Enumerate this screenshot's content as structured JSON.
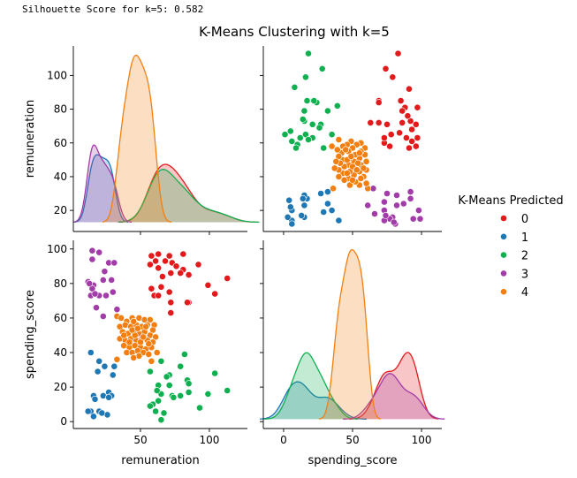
{
  "silhouette_text": "Silhouette Score for k=5: 0.582",
  "chart_data": {
    "type": "scatter",
    "subtype": "pairplot",
    "title": "K-Means Clustering with k=5",
    "variables": [
      "remuneration",
      "spending_score"
    ],
    "diag_kind": "kde",
    "grid": false,
    "legend_placement": "right",
    "legend": {
      "title": "K-Means Predicted",
      "entries": [
        {
          "label": "0",
          "color": "#e31a1c"
        },
        {
          "label": "1",
          "color": "#1f77b4"
        },
        {
          "label": "2",
          "color": "#10b050"
        },
        {
          "label": "3",
          "color": "#a23ca8"
        },
        {
          "label": "4",
          "color": "#f27f10"
        }
      ]
    },
    "axes": {
      "remuneration": {
        "label": "remuneration",
        "xlim": [
          1.3,
          127.6
        ],
        "ylim": [
          7.5,
          117.5
        ],
        "xticks": [
          50,
          100
        ],
        "yticks": [
          20,
          40,
          60,
          80,
          100
        ]
      },
      "spending_score": {
        "label": "spending_score",
        "xlim": [
          -14.7,
          114.7
        ],
        "ylim": [
          -4,
          105
        ],
        "xticks": [
          0,
          50,
          100
        ],
        "yticks": [
          0,
          20,
          40,
          60,
          80,
          100
        ]
      }
    },
    "point_order": [
      "remuneration",
      "spending_score"
    ],
    "clusters": [
      {
        "label": "0",
        "points": [
          [
            58,
            96
          ],
          [
            63,
            97
          ],
          [
            61,
            93
          ],
          [
            57,
            91
          ],
          [
            68,
            93
          ],
          [
            71,
            96
          ],
          [
            73,
            92
          ],
          [
            76,
            90
          ],
          [
            81,
            97
          ],
          [
            81,
            88
          ],
          [
            85,
            85
          ],
          [
            92,
            91
          ],
          [
            63,
            89
          ],
          [
            66,
            84
          ],
          [
            72,
            86
          ],
          [
            113,
            83
          ],
          [
            99,
            79
          ],
          [
            104,
            74
          ],
          [
            58,
            77
          ],
          [
            65,
            78
          ],
          [
            60,
            73
          ],
          [
            63,
            73
          ],
          [
            71,
            75
          ],
          [
            72,
            69
          ],
          [
            85,
            69
          ],
          [
            72,
            63
          ],
          [
            79,
            86
          ],
          [
            84,
            69
          ]
        ]
      },
      {
        "label": "1",
        "points": [
          [
            14,
            40
          ],
          [
            20,
            35
          ],
          [
            24,
            32
          ],
          [
            19,
            29
          ],
          [
            31,
            32
          ],
          [
            30,
            27
          ],
          [
            27,
            17
          ],
          [
            16,
            15
          ],
          [
            23,
            15
          ],
          [
            29,
            15
          ],
          [
            14,
            6
          ],
          [
            20,
            6
          ],
          [
            26,
            4
          ],
          [
            16,
            3
          ],
          [
            12,
            6
          ],
          [
            17,
            13
          ],
          [
            27,
            14
          ],
          [
            22,
            5
          ]
        ]
      },
      {
        "label": "2",
        "points": [
          [
            82,
            39
          ],
          [
            65,
            35
          ],
          [
            79,
            32
          ],
          [
            57,
            29
          ],
          [
            71,
            27
          ],
          [
            69,
            26
          ],
          [
            84,
            24
          ],
          [
            85,
            22
          ],
          [
            63,
            21
          ],
          [
            71,
            21
          ],
          [
            104,
            28
          ],
          [
            113,
            18
          ],
          [
            99,
            16
          ],
          [
            85,
            17
          ],
          [
            79,
            15
          ],
          [
            73,
            15
          ],
          [
            65,
            16
          ],
          [
            63,
            12
          ],
          [
            59,
            10
          ],
          [
            57,
            9
          ],
          [
            61,
            6
          ],
          [
            67,
            5
          ],
          [
            65,
            1
          ],
          [
            93,
            8
          ],
          [
            74,
            14
          ],
          [
            62,
            18
          ]
        ]
      },
      {
        "label": "3",
        "points": [
          [
            15,
            99
          ],
          [
            20,
            98
          ],
          [
            15,
            94
          ],
          [
            27,
            92
          ],
          [
            31,
            92
          ],
          [
            24,
            87
          ],
          [
            23,
            82
          ],
          [
            29,
            82
          ],
          [
            12,
            81
          ],
          [
            16,
            79
          ],
          [
            15,
            77
          ],
          [
            14,
            73
          ],
          [
            20,
            73
          ],
          [
            25,
            73
          ],
          [
            30,
            75
          ],
          [
            18,
            66
          ],
          [
            33,
            65
          ],
          [
            23,
            61
          ],
          [
            13,
            80
          ],
          [
            17,
            74
          ]
        ]
      },
      {
        "label": "4",
        "points": [
          [
            33,
            61
          ],
          [
            36,
            60
          ],
          [
            40,
            58
          ],
          [
            44,
            60
          ],
          [
            49,
            60
          ],
          [
            53,
            59
          ],
          [
            57,
            59
          ],
          [
            60,
            56
          ],
          [
            35,
            55
          ],
          [
            39,
            56
          ],
          [
            43,
            55
          ],
          [
            47,
            56
          ],
          [
            51,
            55
          ],
          [
            55,
            56
          ],
          [
            59,
            53
          ],
          [
            37,
            52
          ],
          [
            41,
            51
          ],
          [
            45,
            52
          ],
          [
            49,
            51
          ],
          [
            53,
            52
          ],
          [
            57,
            50
          ],
          [
            61,
            49
          ],
          [
            35,
            48
          ],
          [
            39,
            47
          ],
          [
            43,
            48
          ],
          [
            47,
            47
          ],
          [
            51,
            48
          ],
          [
            55,
            47
          ],
          [
            59,
            46
          ],
          [
            38,
            44
          ],
          [
            42,
            43
          ],
          [
            46,
            44
          ],
          [
            50,
            43
          ],
          [
            54,
            42
          ],
          [
            58,
            43
          ],
          [
            40,
            40
          ],
          [
            44,
            40
          ],
          [
            48,
            41
          ],
          [
            52,
            40
          ],
          [
            56,
            39
          ],
          [
            62,
            40
          ],
          [
            33,
            36
          ],
          [
            58,
            35
          ],
          [
            46,
            50
          ],
          [
            50,
            46
          ],
          [
            44,
            53
          ],
          [
            48,
            54
          ],
          [
            52,
            49
          ],
          [
            42,
            46
          ],
          [
            56,
            45
          ],
          [
            45,
            58
          ],
          [
            38,
            50
          ],
          [
            54,
            55
          ],
          [
            49,
            38
          ],
          [
            45,
            37
          ]
        ]
      }
    ]
  }
}
